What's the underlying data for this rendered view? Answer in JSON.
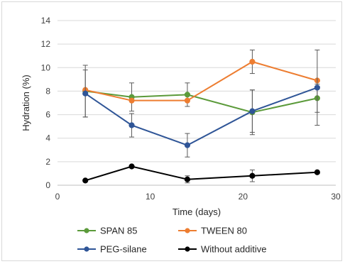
{
  "chart_data": {
    "type": "line",
    "title": "",
    "xlabel": "Time (days)",
    "ylabel": "Hydration (%)",
    "xlim": [
      0,
      30
    ],
    "ylim": [
      0,
      14
    ],
    "x_ticks": [
      0,
      10,
      20,
      30
    ],
    "y_ticks": [
      0,
      2,
      4,
      6,
      8,
      10,
      12,
      14
    ],
    "grid": "horizontal",
    "legend_position": "bottom",
    "x": [
      3,
      8,
      14,
      21,
      28
    ],
    "series": [
      {
        "name": "SPAN 85",
        "color": "#5b9a3a",
        "values": [
          8.0,
          7.5,
          7.7,
          6.2,
          7.4
        ],
        "errors": [
          2.2,
          1.2,
          1.0,
          1.9,
          1.2
        ]
      },
      {
        "name": "TWEEN 80",
        "color": "#ed7d31",
        "values": [
          8.1,
          7.2,
          7.2,
          10.5,
          8.9
        ],
        "errors": [
          0.0,
          0.0,
          0.0,
          1.0,
          0.0
        ]
      },
      {
        "name": "PEG-silane",
        "color": "#2f5597",
        "values": [
          7.8,
          5.1,
          3.4,
          6.3,
          8.3
        ],
        "errors": [
          2.0,
          1.0,
          1.0,
          1.8,
          3.2
        ]
      },
      {
        "name": "Without additive",
        "color": "#000000",
        "values": [
          0.4,
          1.6,
          0.5,
          0.8,
          1.1
        ],
        "errors": [
          0.0,
          0.0,
          0.3,
          0.5,
          0.0
        ]
      }
    ]
  }
}
